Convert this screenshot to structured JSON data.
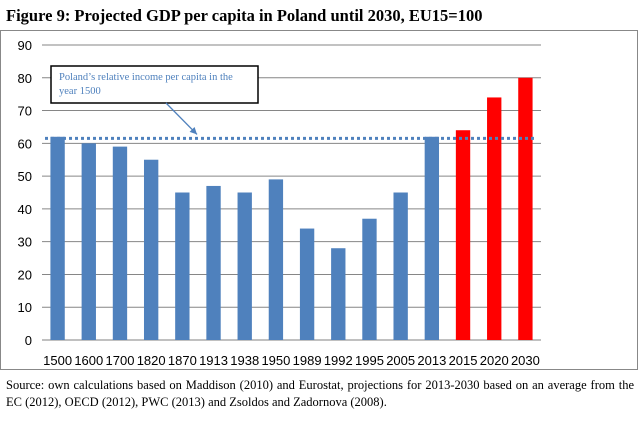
{
  "title": "Figure 9: Projected GDP per capita in Poland until 2030, EU15=100",
  "source_note": "Source: own calculations based on Maddison (2010) and Eurostat, projections for 2013-2030 based on an average from the EC (2012), OECD (2012), PWC (2013) and Zsoldos and Zadornova (2008).",
  "chart_data": {
    "type": "bar",
    "title": "",
    "xlabel": "",
    "ylabel": "",
    "categories": [
      "1500",
      "1600",
      "1700",
      "1820",
      "1870",
      "1913",
      "1938",
      "1950",
      "1989",
      "1992",
      "1995",
      "2005",
      "2013",
      "2015",
      "2020",
      "2030"
    ],
    "values": [
      62,
      60,
      59,
      55,
      45,
      47,
      45,
      49,
      34,
      28,
      37,
      45,
      62,
      64,
      74,
      80
    ],
    "bar_colors": [
      "#4f81bd",
      "#4f81bd",
      "#4f81bd",
      "#4f81bd",
      "#4f81bd",
      "#4f81bd",
      "#4f81bd",
      "#4f81bd",
      "#4f81bd",
      "#4f81bd",
      "#4f81bd",
      "#4f81bd",
      "#4f81bd",
      "#ff0000",
      "#ff0000",
      "#ff0000"
    ],
    "ylim": [
      0,
      90
    ],
    "yticks": [
      0,
      10,
      20,
      30,
      40,
      50,
      60,
      70,
      80,
      90
    ],
    "grid": "horizontal",
    "reference_line": {
      "value": 61.5,
      "style": "dotted",
      "color": "#4f81bd"
    },
    "annotation": {
      "text": "Poland’s relative income per capita in the year 1500"
    }
  }
}
